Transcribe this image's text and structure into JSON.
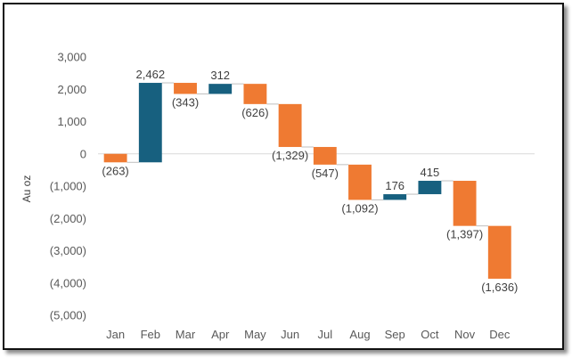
{
  "chart_data": {
    "type": "bar",
    "subtype": "waterfall",
    "ylabel": "Au oz",
    "xlabel": "",
    "title": "",
    "ylim": [
      -5000,
      3000
    ],
    "ytick_step": 1000,
    "yticks": [
      "3,000",
      "2,000",
      "1,000",
      "0",
      "(1,000)",
      "(2,000)",
      "(3,000)",
      "(4,000)",
      "(5,000)"
    ],
    "grid": false,
    "categories": [
      "Jan",
      "Feb",
      "Mar",
      "Apr",
      "May",
      "Jun",
      "Jul",
      "Aug",
      "Sep",
      "Oct",
      "Nov",
      "Dec"
    ],
    "values": [
      -263,
      2462,
      -343,
      312,
      -626,
      -1329,
      -547,
      -1092,
      176,
      415,
      -1397,
      -1636
    ],
    "labels": [
      "(263)",
      "2,462",
      "(343)",
      "312",
      "(626)",
      "(1,329)",
      "(547)",
      "(1,092)",
      "176",
      "415",
      "(1,397)",
      "(1,636)"
    ],
    "colors": {
      "increase": "#17607f",
      "decrease": "#ef7a32",
      "connector": "#bfbfbf",
      "axis": "#d9d9d9"
    }
  }
}
